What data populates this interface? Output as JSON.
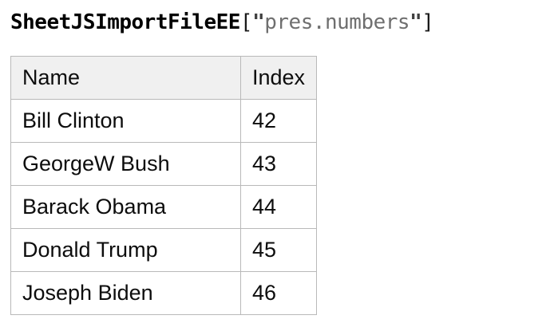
{
  "page_title": {
    "name": "SheetJSImportFileEE",
    "open_bracket": "[",
    "quote": "\"",
    "file": "pres.numbers",
    "close_bracket": "]"
  },
  "table": {
    "columns": [
      "Name",
      "Index"
    ],
    "rows": [
      {
        "name": "Bill Clinton",
        "index": "42"
      },
      {
        "name": "GeorgeW Bush",
        "index": "43"
      },
      {
        "name": "Barack Obama",
        "index": "44"
      },
      {
        "name": "Donald Trump",
        "index": "45"
      },
      {
        "name": "Joseph Biden",
        "index": "46"
      }
    ]
  },
  "colors": {
    "page_background": "#ffffff",
    "header_background": "#f0f0f0",
    "table_border": "#b9b9b9",
    "body_text": "#0d0d0d",
    "title_name": "#000000",
    "title_bracket": "#1a1a1a",
    "title_quote": "#3f3f3f",
    "title_string": "#6f6f6f"
  }
}
